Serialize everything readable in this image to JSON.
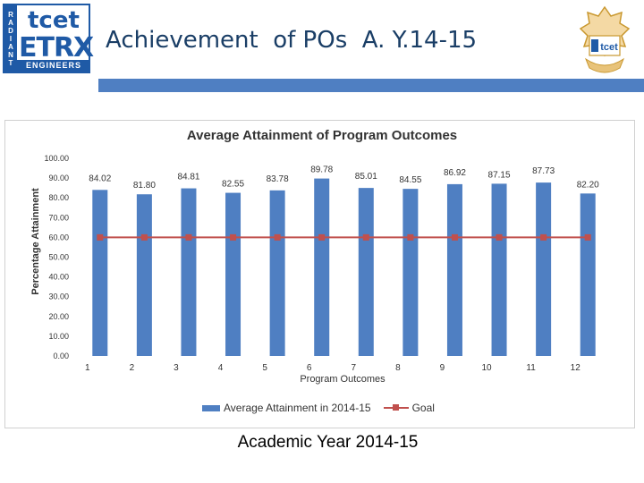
{
  "header": {
    "title": "Achievement  of POs  A. Y.14-15",
    "logo_left": {
      "side_text": [
        "R",
        "A",
        "D",
        "I",
        "A",
        "N",
        "T"
      ],
      "top_text": "tcet",
      "main_text": "ETRX",
      "bottom_text": "ENGINEERS"
    },
    "logo_right": {
      "text": "tcet"
    }
  },
  "colors": {
    "bar": "#4f7fc2",
    "goal": "#c0504d",
    "header_bar": "#4f7fc2"
  },
  "chart_data": {
    "type": "bar",
    "title": "Average Attainment of Program Outcomes",
    "xlabel": "Program Outcomes",
    "ylabel": "Percentage Attainment",
    "categories": [
      "1",
      "2",
      "3",
      "4",
      "5",
      "6",
      "7",
      "8",
      "9",
      "10",
      "11",
      "12"
    ],
    "ylim": [
      0,
      100
    ],
    "yticks": [
      "0.00",
      "10.00",
      "20.00",
      "30.00",
      "40.00",
      "50.00",
      "60.00",
      "70.00",
      "80.00",
      "90.00",
      "100.00"
    ],
    "series": [
      {
        "name": "Average Attainment in 2014-15",
        "type": "bar",
        "values": [
          84.02,
          81.8,
          84.81,
          82.55,
          83.78,
          89.78,
          85.01,
          84.55,
          86.92,
          87.15,
          87.73,
          82.2
        ],
        "labels": [
          "84.02",
          "81.80",
          "84.81",
          "82.55",
          "83.78",
          "89.78",
          "85.01",
          "84.55",
          "86.92",
          "87.15",
          "87.73",
          "82.20"
        ]
      },
      {
        "name": "Goal",
        "type": "line",
        "values": [
          60,
          60,
          60,
          60,
          60,
          60,
          60,
          60,
          60,
          60,
          60,
          60
        ]
      }
    ],
    "legend": "bottom",
    "grid": false
  },
  "footer": {
    "text": "Academic Year  2014-15"
  }
}
